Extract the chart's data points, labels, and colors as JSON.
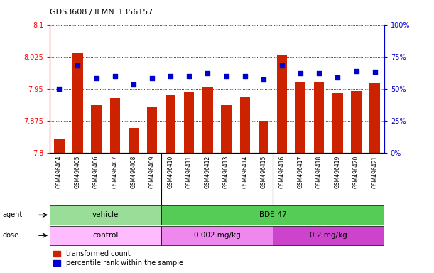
{
  "title": "GDS3608 / ILMN_1356157",
  "samples": [
    "GSM496404",
    "GSM496405",
    "GSM496406",
    "GSM496407",
    "GSM496408",
    "GSM496409",
    "GSM496410",
    "GSM496411",
    "GSM496412",
    "GSM496413",
    "GSM496414",
    "GSM496415",
    "GSM496416",
    "GSM496417",
    "GSM496418",
    "GSM496419",
    "GSM496420",
    "GSM496421"
  ],
  "transformed_count": [
    7.832,
    8.035,
    7.912,
    7.928,
    7.858,
    7.908,
    7.937,
    7.943,
    7.955,
    7.912,
    7.93,
    7.875,
    8.03,
    7.965,
    7.965,
    7.94,
    7.945,
    7.963
  ],
  "percentile_rank": [
    50,
    68,
    58,
    60,
    53,
    58,
    60,
    60,
    62,
    60,
    60,
    57,
    68,
    62,
    62,
    59,
    64,
    63
  ],
  "ylim_left": [
    7.8,
    8.1
  ],
  "ylim_right": [
    0,
    100
  ],
  "yticks_left": [
    7.8,
    7.875,
    7.95,
    8.025,
    8.1
  ],
  "yticks_right": [
    0,
    25,
    50,
    75,
    100
  ],
  "bar_color": "#cc2200",
  "dot_color": "#0000cc",
  "agent_spans": [
    {
      "label": "vehicle",
      "start": 0,
      "end": 5,
      "color": "#99dd99"
    },
    {
      "label": "BDE-47",
      "start": 6,
      "end": 17,
      "color": "#55cc55"
    }
  ],
  "dose_spans": [
    {
      "label": "control",
      "start": 0,
      "end": 5,
      "color": "#ffbbff"
    },
    {
      "label": "0.002 mg/kg",
      "start": 6,
      "end": 11,
      "color": "#ee88ee"
    },
    {
      "label": "0.2 mg/kg",
      "start": 12,
      "end": 17,
      "color": "#cc44cc"
    }
  ],
  "legend_red_label": "transformed count",
  "legend_blue_label": "percentile rank within the sample",
  "xtick_bg_color": "#cccccc",
  "right_axis_color": "#0000cc"
}
